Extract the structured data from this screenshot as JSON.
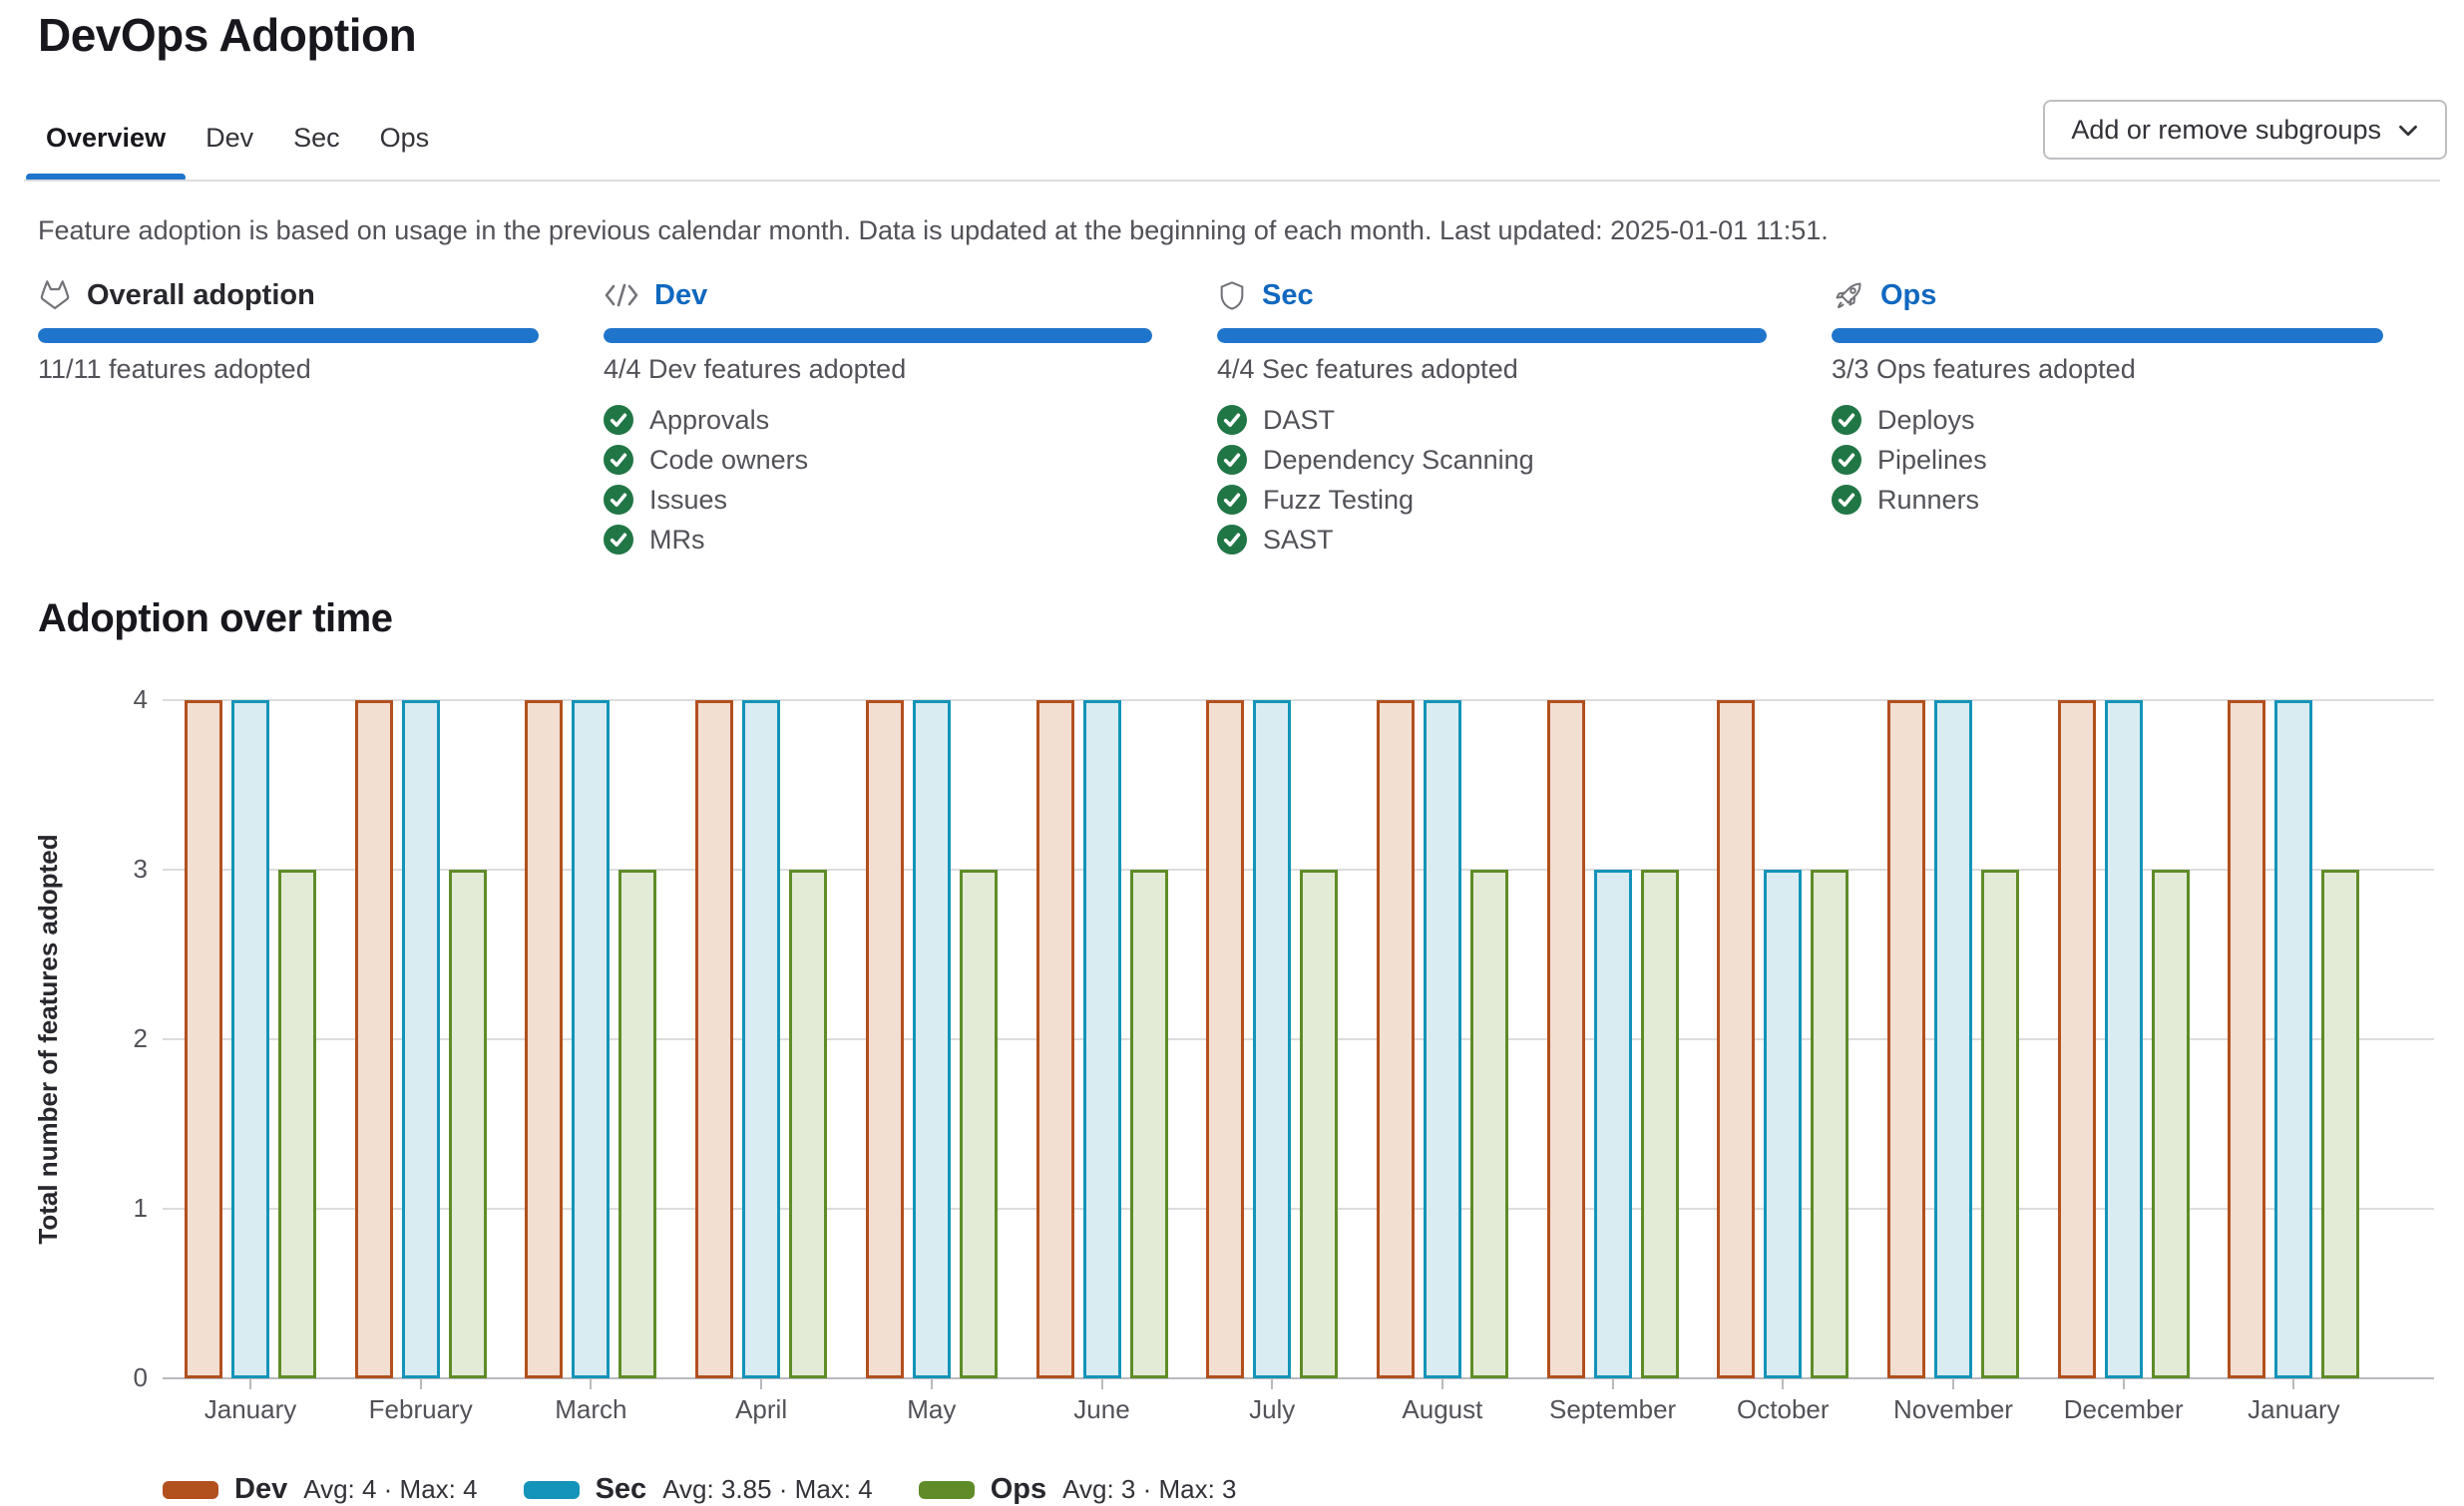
{
  "page": {
    "title": "DevOps Adoption"
  },
  "accent_color": "#1f75cb",
  "link_color": "#1068bf",
  "check_color": "#217645",
  "tabs": [
    {
      "label": "Overview",
      "active": true
    },
    {
      "label": "Dev",
      "active": false
    },
    {
      "label": "Sec",
      "active": false
    },
    {
      "label": "Ops",
      "active": false
    }
  ],
  "subgroups_button": {
    "label": "Add or remove subgroups",
    "icon": "chevron-down-icon"
  },
  "info_text": "Feature adoption is based on usage in the previous calendar month. Data is updated at the beginning of each month. Last updated: 2025-01-01 11:51.",
  "cards": [
    {
      "icon": "tanuki-icon",
      "title": "Overall adoption",
      "is_link": false,
      "progress_pct": 100,
      "count_text": "11/11 features adopted",
      "features": []
    },
    {
      "icon": "code-icon",
      "title": "Dev",
      "is_link": true,
      "progress_pct": 100,
      "count_text": "4/4 Dev features adopted",
      "features": [
        "Approvals",
        "Code owners",
        "Issues",
        "MRs"
      ]
    },
    {
      "icon": "shield-icon",
      "title": "Sec",
      "is_link": true,
      "progress_pct": 100,
      "count_text": "4/4 Sec features adopted",
      "features": [
        "DAST",
        "Dependency Scanning",
        "Fuzz Testing",
        "SAST"
      ]
    },
    {
      "icon": "rocket-icon",
      "title": "Ops",
      "is_link": true,
      "progress_pct": 100,
      "count_text": "3/3 Ops features adopted",
      "features": [
        "Deploys",
        "Pipelines",
        "Runners"
      ]
    }
  ],
  "chart_heading": "Adoption over time",
  "chart_data": {
    "type": "bar",
    "title": "Adoption over time",
    "categories": [
      "January",
      "February",
      "March",
      "April",
      "May",
      "June",
      "July",
      "August",
      "September",
      "October",
      "November",
      "December",
      "January"
    ],
    "series": [
      {
        "name": "Dev",
        "color": "#b2501e",
        "fill": "#f3ded2",
        "values": [
          4,
          4,
          4,
          4,
          4,
          4,
          4,
          4,
          4,
          4,
          4,
          4,
          4
        ],
        "legend_stats": "Avg: 4 · Max: 4"
      },
      {
        "name": "Sec",
        "color": "#1394b8",
        "fill": "#d9ecf2",
        "values": [
          4,
          4,
          4,
          4,
          4,
          4,
          4,
          4,
          3,
          3,
          4,
          4,
          4
        ],
        "legend_stats": "Avg: 3.85 · Max: 4"
      },
      {
        "name": "Ops",
        "color": "#5f8c28",
        "fill": "#e3ebd7",
        "values": [
          3,
          3,
          3,
          3,
          3,
          3,
          3,
          3,
          3,
          3,
          3,
          3,
          3
        ],
        "legend_stats": "Avg: 3 · Max: 3"
      }
    ],
    "ylabel": "Total number of features adopted",
    "ylim": [
      0,
      4
    ],
    "yticks": [
      0,
      1,
      2,
      3,
      4
    ],
    "grid": true,
    "legend_position": "bottom"
  }
}
